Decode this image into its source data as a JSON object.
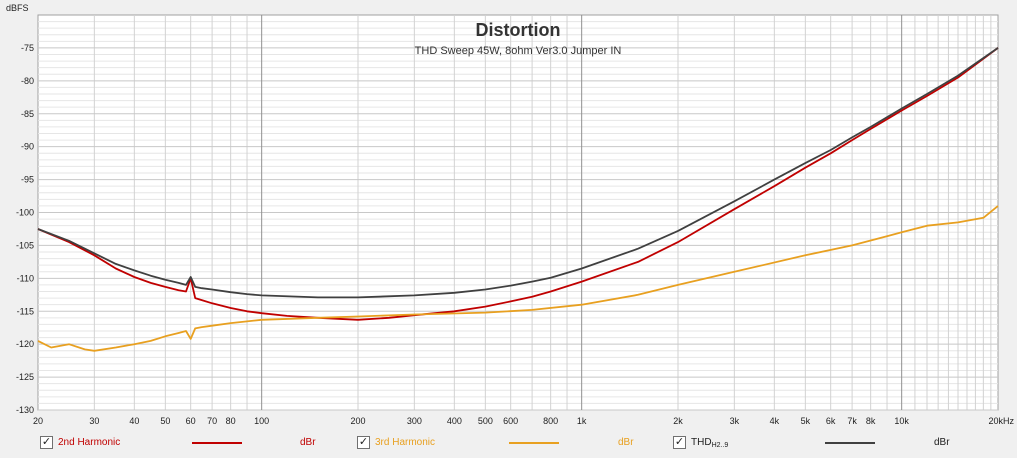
{
  "chart_data": {
    "type": "line",
    "title": "Distortion",
    "subtitle": "THD Sweep 45W, 8ohm Ver3.0 Jumper IN",
    "y_unit_label": "dBFS",
    "x_scale": "log",
    "xlim": [
      20,
      20000
    ],
    "ylim": [
      -130,
      -70
    ],
    "y_ticks": [
      -75,
      -80,
      -85,
      -90,
      -95,
      -100,
      -105,
      -110,
      -115,
      -120,
      -125,
      -130
    ],
    "x_tick_labels": [
      {
        "value": 20,
        "label": "20"
      },
      {
        "value": 30,
        "label": "30"
      },
      {
        "value": 40,
        "label": "40"
      },
      {
        "value": 50,
        "label": "50"
      },
      {
        "value": 60,
        "label": "60"
      },
      {
        "value": 70,
        "label": "70"
      },
      {
        "value": 80,
        "label": "80"
      },
      {
        "value": 100,
        "label": "100"
      },
      {
        "value": 200,
        "label": "200"
      },
      {
        "value": 300,
        "label": "300"
      },
      {
        "value": 400,
        "label": "400"
      },
      {
        "value": 500,
        "label": "500"
      },
      {
        "value": 600,
        "label": "600"
      },
      {
        "value": 800,
        "label": "800"
      },
      {
        "value": 1000,
        "label": "1k"
      },
      {
        "value": 2000,
        "label": "2k"
      },
      {
        "value": 3000,
        "label": "3k"
      },
      {
        "value": 4000,
        "label": "4k"
      },
      {
        "value": 5000,
        "label": "5k"
      },
      {
        "value": 6000,
        "label": "6k"
      },
      {
        "value": 7000,
        "label": "7k"
      },
      {
        "value": 8000,
        "label": "8k"
      },
      {
        "value": 10000,
        "label": "10k"
      },
      {
        "value": 20000,
        "label": "20kHz"
      }
    ],
    "grid": true,
    "series": [
      {
        "name": "2nd Harmonic",
        "unit": "dBr",
        "color": "#c00000",
        "points": [
          [
            20,
            -102.5
          ],
          [
            25,
            -104.5
          ],
          [
            30,
            -106.5
          ],
          [
            35,
            -108.5
          ],
          [
            40,
            -109.8
          ],
          [
            45,
            -110.7
          ],
          [
            50,
            -111.3
          ],
          [
            55,
            -111.8
          ],
          [
            58,
            -112.0
          ],
          [
            60,
            -110.0
          ],
          [
            62,
            -113.0
          ],
          [
            65,
            -113.3
          ],
          [
            70,
            -113.8
          ],
          [
            80,
            -114.5
          ],
          [
            90,
            -115.0
          ],
          [
            100,
            -115.3
          ],
          [
            120,
            -115.7
          ],
          [
            150,
            -116.0
          ],
          [
            200,
            -116.3
          ],
          [
            250,
            -116.0
          ],
          [
            300,
            -115.6
          ],
          [
            400,
            -115.0
          ],
          [
            500,
            -114.3
          ],
          [
            600,
            -113.5
          ],
          [
            700,
            -112.8
          ],
          [
            800,
            -112.0
          ],
          [
            1000,
            -110.5
          ],
          [
            1500,
            -107.5
          ],
          [
            2000,
            -104.5
          ],
          [
            3000,
            -99.5
          ],
          [
            4000,
            -96.0
          ],
          [
            5000,
            -93.2
          ],
          [
            6000,
            -91.0
          ],
          [
            7000,
            -89.0
          ],
          [
            8000,
            -87.3
          ],
          [
            10000,
            -84.5
          ],
          [
            12000,
            -82.3
          ],
          [
            15000,
            -79.5
          ],
          [
            20000,
            -75.0
          ]
        ]
      },
      {
        "name": "3rd Harmonic",
        "unit": "dBr",
        "color": "#e8a020",
        "points": [
          [
            20,
            -119.5
          ],
          [
            22,
            -120.5
          ],
          [
            25,
            -120.0
          ],
          [
            28,
            -120.8
          ],
          [
            30,
            -121.0
          ],
          [
            35,
            -120.5
          ],
          [
            40,
            -120.0
          ],
          [
            45,
            -119.5
          ],
          [
            50,
            -118.8
          ],
          [
            55,
            -118.3
          ],
          [
            58,
            -118.0
          ],
          [
            60,
            -119.2
          ],
          [
            62,
            -117.6
          ],
          [
            65,
            -117.4
          ],
          [
            70,
            -117.2
          ],
          [
            80,
            -116.8
          ],
          [
            100,
            -116.3
          ],
          [
            150,
            -116.0
          ],
          [
            200,
            -115.8
          ],
          [
            300,
            -115.5
          ],
          [
            500,
            -115.2
          ],
          [
            700,
            -114.8
          ],
          [
            1000,
            -114.0
          ],
          [
            1500,
            -112.5
          ],
          [
            2000,
            -111.0
          ],
          [
            3000,
            -109.0
          ],
          [
            5000,
            -106.5
          ],
          [
            7000,
            -105.0
          ],
          [
            10000,
            -103.0
          ],
          [
            12000,
            -102.0
          ],
          [
            15000,
            -101.5
          ],
          [
            18000,
            -100.8
          ],
          [
            20000,
            -99.0
          ]
        ]
      },
      {
        "name": "THD",
        "name_subscript": "H2..9",
        "unit": "dBr",
        "color": "#404040",
        "points": [
          [
            20,
            -102.5
          ],
          [
            25,
            -104.3
          ],
          [
            30,
            -106.2
          ],
          [
            35,
            -107.8
          ],
          [
            40,
            -108.8
          ],
          [
            45,
            -109.6
          ],
          [
            50,
            -110.2
          ],
          [
            55,
            -110.7
          ],
          [
            58,
            -111.0
          ],
          [
            60,
            -109.8
          ],
          [
            62,
            -111.3
          ],
          [
            65,
            -111.5
          ],
          [
            70,
            -111.7
          ],
          [
            80,
            -112.1
          ],
          [
            90,
            -112.4
          ],
          [
            100,
            -112.6
          ],
          [
            150,
            -112.9
          ],
          [
            200,
            -112.9
          ],
          [
            300,
            -112.6
          ],
          [
            400,
            -112.2
          ],
          [
            500,
            -111.7
          ],
          [
            600,
            -111.1
          ],
          [
            700,
            -110.5
          ],
          [
            800,
            -109.9
          ],
          [
            1000,
            -108.5
          ],
          [
            1500,
            -105.5
          ],
          [
            2000,
            -102.8
          ],
          [
            3000,
            -98.3
          ],
          [
            4000,
            -95.0
          ],
          [
            5000,
            -92.5
          ],
          [
            6000,
            -90.5
          ],
          [
            7000,
            -88.6
          ],
          [
            8000,
            -87.0
          ],
          [
            10000,
            -84.2
          ],
          [
            12000,
            -82.0
          ],
          [
            15000,
            -79.2
          ],
          [
            20000,
            -75.0
          ]
        ]
      }
    ]
  },
  "legend": [
    {
      "label": "2nd Harmonic",
      "checked": true,
      "unit": "dBr",
      "color": "#c00000",
      "label_color": "#c00000"
    },
    {
      "label": "3rd Harmonic",
      "checked": true,
      "unit": "dBr",
      "color": "#e8a020",
      "label_color": "#e8a020"
    },
    {
      "label": "THD",
      "label_sub": "H2..9",
      "checked": true,
      "unit": "dBr",
      "color": "#404040",
      "label_color": "#202020"
    }
  ],
  "checkmark_glyph": "✓"
}
